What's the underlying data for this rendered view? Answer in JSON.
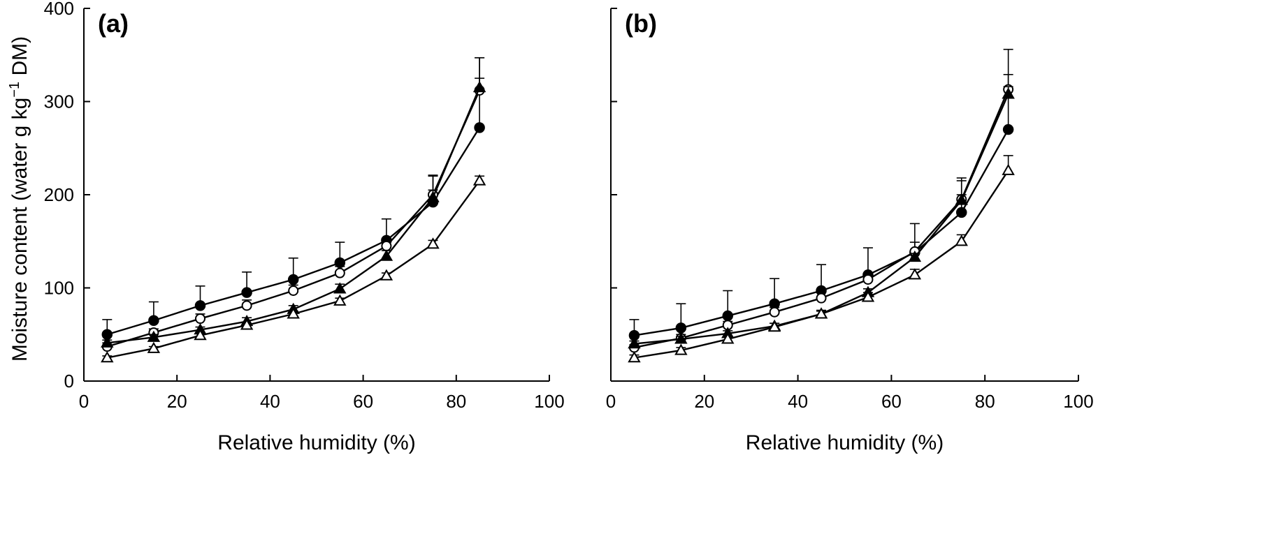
{
  "chart_data": [
    {
      "type": "line",
      "panel_label": "(a)",
      "xlabel": "Relative humidity (%)",
      "ylabel": "Moisture content (water g kg",
      "ylabel_sup": "−1",
      "ylabel_tail": " DM)",
      "xlim": [
        0,
        100
      ],
      "ylim": [
        0,
        400
      ],
      "xticks": [
        0,
        20,
        40,
        60,
        80,
        100
      ],
      "yticks": [
        0,
        100,
        200,
        300,
        400
      ],
      "x": [
        5,
        15,
        25,
        35,
        45,
        55,
        65,
        75,
        85
      ],
      "series": [
        {
          "marker": "filled-circle",
          "values": [
            50,
            65,
            81,
            95,
            109,
            127,
            151,
            192,
            272
          ],
          "errors": [
            16,
            20,
            21,
            22,
            23,
            22,
            23,
            29,
            75
          ]
        },
        {
          "marker": "open-circle",
          "values": [
            37,
            52,
            67,
            81,
            97,
            116,
            145,
            200,
            312
          ],
          "errors": [
            4,
            4,
            5,
            6,
            6,
            7,
            8,
            20,
            35
          ]
        },
        {
          "marker": "filled-triangle",
          "values": [
            41,
            47,
            55,
            64,
            77,
            99,
            134,
            197,
            315
          ],
          "errors": [
            3,
            3,
            3,
            4,
            4,
            5,
            6,
            8,
            10
          ]
        },
        {
          "marker": "open-triangle",
          "values": [
            25,
            35,
            49,
            60,
            72,
            86,
            113,
            147,
            215
          ],
          "errors": [
            2,
            2,
            2,
            2,
            3,
            3,
            3,
            4,
            5
          ]
        }
      ]
    },
    {
      "type": "line",
      "panel_label": "(b)",
      "xlabel": "Relative humidity (%)",
      "xlim": [
        0,
        100
      ],
      "ylim": [
        0,
        400
      ],
      "xticks": [
        0,
        20,
        40,
        60,
        80,
        100
      ],
      "yticks": [
        0,
        100,
        200,
        300,
        400
      ],
      "x": [
        5,
        15,
        25,
        35,
        45,
        55,
        65,
        75,
        85
      ],
      "series": [
        {
          "marker": "filled-circle",
          "values": [
            49,
            57,
            70,
            83,
            97,
            114,
            138,
            181,
            270
          ],
          "errors": [
            17,
            26,
            27,
            27,
            28,
            29,
            31,
            37,
            59
          ]
        },
        {
          "marker": "open-circle",
          "values": [
            36,
            46,
            60,
            74,
            89,
            109,
            139,
            195,
            313
          ],
          "errors": [
            3,
            4,
            4,
            5,
            6,
            7,
            10,
            20,
            43
          ]
        },
        {
          "marker": "filled-triangle",
          "values": [
            40,
            45,
            51,
            59,
            72,
            95,
            133,
            194,
            308
          ],
          "errors": [
            3,
            3,
            3,
            3,
            3,
            4,
            4,
            6,
            8
          ]
        },
        {
          "marker": "open-triangle",
          "values": [
            25,
            33,
            45,
            58,
            72,
            90,
            114,
            150,
            226
          ],
          "errors": [
            3,
            3,
            3,
            4,
            4,
            5,
            6,
            7,
            16
          ]
        }
      ]
    }
  ]
}
